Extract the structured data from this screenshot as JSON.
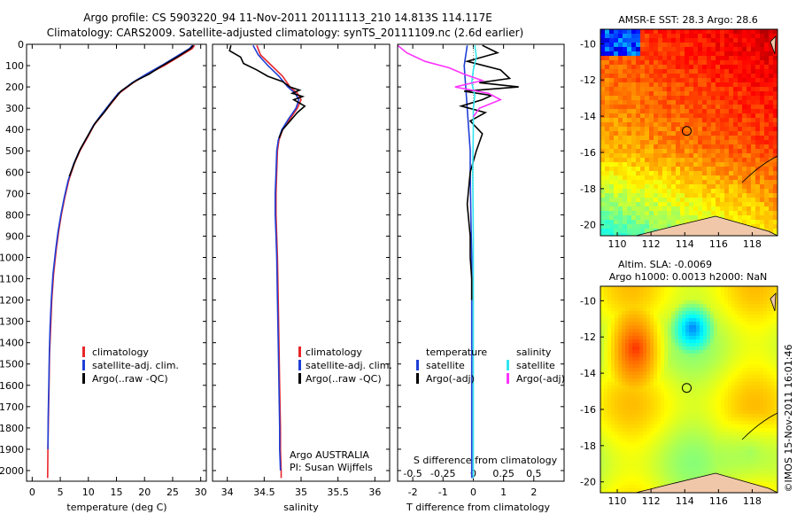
{
  "header": {
    "title_line1": "Argo profile: CS 5903220_94 11-Nov-2011 20111113_210 14.813S 114.117E",
    "title_line2": "Climatology: CARS2009. Satellite-adjusted climatology: synTS_20111109.nc (2.6d earlier)"
  },
  "footer": {
    "imos_stamp": "©IMOS 15-Nov-2011 16:01:46"
  },
  "colors": {
    "climatology": "#e8262b",
    "satellite": "#1f3fd6",
    "argo": "#000000",
    "sal_satellite": "#33e6f0",
    "sal_argo": "#ff33ff",
    "land": "#f0c7a8"
  },
  "chart_data": [
    {
      "id": "temperature",
      "type": "line",
      "xlabel": "temperature (deg C)",
      "xlim": [
        -1,
        31
      ],
      "xticks": [
        0,
        5,
        10,
        15,
        20,
        25,
        30
      ],
      "ylim": [
        2050,
        0
      ],
      "yticks": [
        0,
        100,
        200,
        300,
        400,
        500,
        600,
        700,
        800,
        900,
        1000,
        1100,
        1200,
        1300,
        1400,
        1500,
        1600,
        1700,
        1800,
        1900,
        2000
      ],
      "legend": [
        "climatology",
        "satellite-adj. clim.",
        "Argo(..raw -QC)"
      ],
      "series": [
        {
          "name": "climatology",
          "color": "#e8262b",
          "x": [
            28.9,
            28.5,
            26,
            23.5,
            20.5,
            18,
            15.5,
            14,
            12.5,
            11,
            10,
            8.5,
            7.5,
            6.5,
            5.8,
            5.2,
            4.7,
            4.3,
            3.8,
            3.5,
            3.3,
            3.1,
            3.0,
            2.9,
            2.8,
            2.75
          ],
          "y": [
            5,
            20,
            60,
            100,
            140,
            180,
            230,
            280,
            330,
            380,
            430,
            500,
            560,
            640,
            720,
            800,
            880,
            960,
            1080,
            1200,
            1320,
            1450,
            1600,
            1750,
            1900,
            2035
          ]
        },
        {
          "name": "satellite",
          "color": "#1f3fd6",
          "x": [
            28.5,
            28,
            25.5,
            23,
            20.3,
            17.8,
            15.3,
            13.8,
            12.3,
            10.9,
            9.9,
            8.4,
            7.4,
            6.4,
            5.7,
            5.1,
            4.6,
            4.2,
            3.7,
            3.4,
            3.2,
            3.05,
            2.95,
            2.85,
            2.8
          ],
          "y": [
            5,
            20,
            60,
            100,
            140,
            180,
            230,
            280,
            330,
            380,
            430,
            500,
            560,
            640,
            720,
            800,
            880,
            960,
            1080,
            1200,
            1320,
            1450,
            1600,
            1750,
            1900
          ]
        },
        {
          "name": "argo",
          "color": "#000000",
          "x": [
            28.7,
            28.2,
            25.8,
            23.2,
            20.8,
            18.5,
            15.8,
            14.2,
            12.8,
            11.2,
            10.1,
            8.6,
            7.6,
            6.6
          ],
          "y": [
            5,
            20,
            60,
            100,
            140,
            170,
            220,
            270,
            320,
            370,
            420,
            490,
            550,
            620
          ]
        }
      ]
    },
    {
      "id": "salinity",
      "type": "line",
      "xlabel": "salinity",
      "xlim": [
        33.8,
        36.2
      ],
      "xticks": [
        34,
        34.5,
        35,
        35.5,
        36
      ],
      "ylim": [
        2050,
        0
      ],
      "legend": [
        "climatology",
        "satellite-adj. clim.",
        "Argo(..raw -QC)"
      ],
      "annotations": [
        "Argo AUSTRALIA",
        "PI: Susan Wijffels"
      ],
      "series": [
        {
          "name": "climatology",
          "color": "#e8262b",
          "x": [
            34.4,
            34.45,
            34.6,
            34.75,
            34.85,
            34.95,
            35.0,
            34.95,
            34.85,
            34.75,
            34.7,
            34.68,
            34.67,
            34.66,
            34.66,
            34.67,
            34.68,
            34.69,
            34.7,
            34.71,
            34.72,
            34.72,
            34.73,
            34.73
          ],
          "y": [
            5,
            50,
            100,
            150,
            200,
            230,
            260,
            300,
            350,
            400,
            450,
            500,
            600,
            700,
            800,
            900,
            1000,
            1200,
            1400,
            1600,
            1800,
            1900,
            2000,
            2035
          ]
        },
        {
          "name": "satellite",
          "color": "#1f3fd6",
          "x": [
            34.35,
            34.42,
            34.55,
            34.7,
            34.82,
            34.92,
            34.97,
            34.93,
            34.83,
            34.74,
            34.69,
            34.67,
            34.66,
            34.65,
            34.65,
            34.66,
            34.67,
            34.68,
            34.69,
            34.7,
            34.71,
            34.71,
            34.72
          ],
          "y": [
            5,
            50,
            100,
            150,
            200,
            230,
            260,
            300,
            350,
            400,
            450,
            500,
            600,
            700,
            800,
            900,
            1000,
            1200,
            1400,
            1600,
            1800,
            1900,
            2000
          ]
        },
        {
          "name": "argo",
          "color": "#000000",
          "x": [
            34.05,
            34.03,
            34.18,
            34.22,
            34.4,
            34.55,
            34.75,
            34.85,
            34.98,
            34.88,
            35.02,
            34.9,
            35.05,
            34.95,
            34.85,
            34.75,
            34.7
          ],
          "y": [
            5,
            30,
            60,
            90,
            120,
            150,
            175,
            200,
            215,
            230,
            245,
            260,
            290,
            320,
            360,
            400,
            440
          ]
        }
      ]
    },
    {
      "id": "difference",
      "type": "line",
      "xlabel": "T difference from climatology",
      "x2label": "S difference from climatology",
      "xlim": [
        -2.5,
        3
      ],
      "xticks": [
        -2,
        -1,
        0,
        1,
        2
      ],
      "x2ticks": [
        "-0.5",
        "-0.25",
        "0",
        "0.25",
        "0.5"
      ],
      "x2tick_values": [
        -2,
        -1,
        0,
        1,
        2
      ],
      "ylim": [
        2050,
        0
      ],
      "legend_headers": [
        "temperature",
        "salinity"
      ],
      "legend": [
        "satellite",
        "Argo(-adj)",
        "satellite",
        "Argo(-adj)"
      ],
      "series": [
        {
          "name": "T satellite",
          "color": "#1f3fd6",
          "x": [
            -0.2,
            -0.3,
            -0.25,
            -0.2,
            -0.15,
            -0.1,
            -0.1,
            -0.08,
            -0.05,
            -0.05,
            -0.05,
            -0.05,
            -0.05
          ],
          "y": [
            5,
            100,
            200,
            300,
            400,
            500,
            600,
            800,
            1000,
            1200,
            1500,
            1800,
            2035
          ]
        },
        {
          "name": "T argo",
          "color": "#000000",
          "x": [
            0.3,
            0.8,
            -0.2,
            0.9,
            1.2,
            0.2,
            1.5,
            -0.3,
            0.6,
            0.3,
            -0.4,
            0.4,
            -0.1,
            0.3,
            0.1,
            -0.1,
            -0.2,
            -0.1,
            -0.1,
            -0.05,
            -0.05
          ],
          "y": [
            5,
            40,
            80,
            120,
            160,
            180,
            200,
            220,
            240,
            260,
            290,
            320,
            360,
            420,
            500,
            600,
            750,
            900,
            1000,
            1100,
            1200
          ]
        },
        {
          "name": "S satellite",
          "color": "#33e6f0",
          "x": [
            0.05,
            0.1,
            0.0,
            -0.05,
            0.05,
            0.0,
            0.0,
            -0.02,
            0.0,
            0.0,
            0.0,
            0.0
          ],
          "y": [
            5,
            60,
            120,
            180,
            240,
            300,
            400,
            600,
            900,
            1200,
            1600,
            2035
          ]
        },
        {
          "name": "S argo",
          "color": "#ff33ff",
          "x": [
            -2.5,
            -2.2,
            -1.6,
            -0.8,
            -0.3,
            0.3,
            -0.6,
            0.5,
            0.9,
            0.2,
            0.0
          ],
          "y": [
            5,
            40,
            80,
            110,
            140,
            170,
            200,
            230,
            260,
            300,
            340
          ]
        }
      ]
    },
    {
      "id": "sst-map",
      "type": "heatmap",
      "title": "AMSR-E SST: 28.3 Argo: 28.6",
      "xticks": [
        110,
        112,
        114,
        116,
        118
      ],
      "yticks": [
        -10,
        -12,
        -14,
        -16,
        -18,
        -20
      ],
      "xlim": [
        109,
        119.5
      ],
      "ylim": [
        -20.6,
        -9.2
      ],
      "argo_position": [
        114.117,
        -14.813
      ]
    },
    {
      "id": "sla-map",
      "type": "heatmap",
      "title_line1": "Altim. SLA: -0.0069",
      "title_line2": "Argo h1000: 0.0013 h2000: NaN",
      "xticks": [
        110,
        112,
        114,
        116,
        118
      ],
      "yticks": [
        -10,
        -12,
        -14,
        -16,
        -18,
        -20
      ],
      "xlim": [
        109,
        119.5
      ],
      "ylim": [
        -20.6,
        -9.2
      ],
      "argo_position": [
        114.117,
        -14.813
      ]
    }
  ]
}
